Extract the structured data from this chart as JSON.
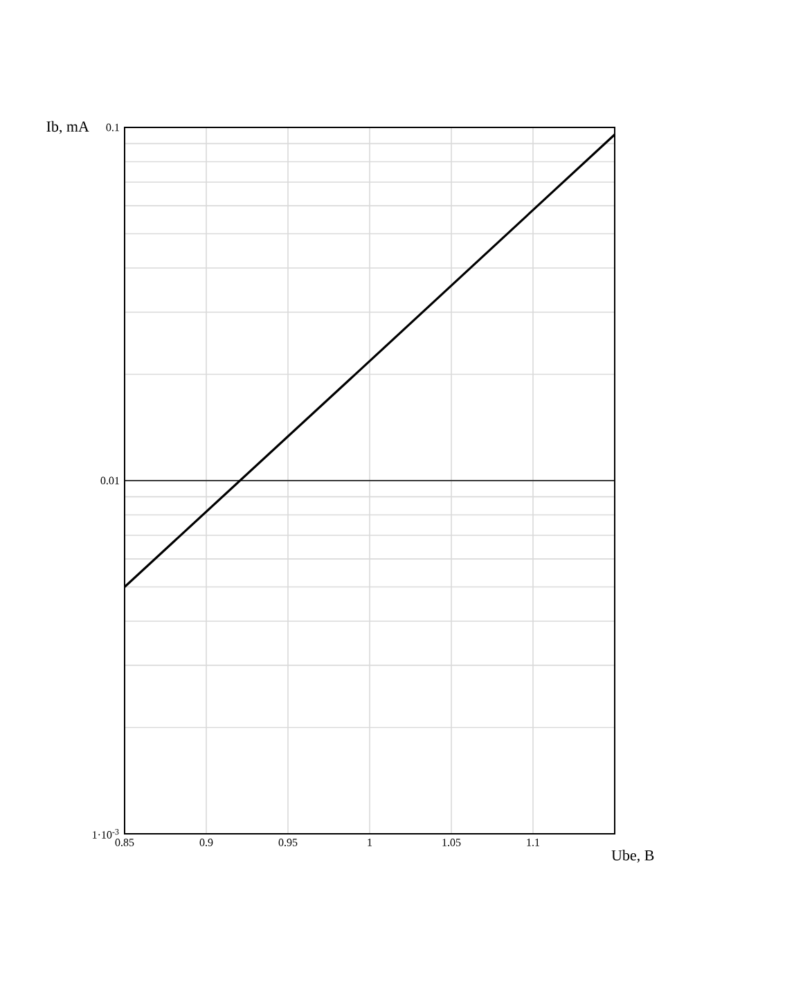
{
  "chart_data": {
    "type": "line",
    "xlabel": "Ube, B",
    "ylabel": "Ib, mA",
    "x": [
      0.85,
      1.0,
      1.15
    ],
    "series": [
      {
        "color": "#000000",
        "values": [
          0.005,
          0.0218,
          0.0955
        ]
      }
    ],
    "xlim": [
      0.85,
      1.15
    ],
    "xticks": [
      0.85,
      0.9,
      0.95,
      1,
      1.05,
      1.1
    ],
    "ylim": [
      0.001,
      0.1
    ],
    "yticks": [
      {
        "value": 0.001,
        "label": "1·10$^{-3}$"
      },
      0.01,
      0.1
    ],
    "log": "y",
    "grid": true,
    "ref_lines": [
      {
        "axis": "y",
        "value": 0.01,
        "color": "#000000"
      }
    ]
  }
}
